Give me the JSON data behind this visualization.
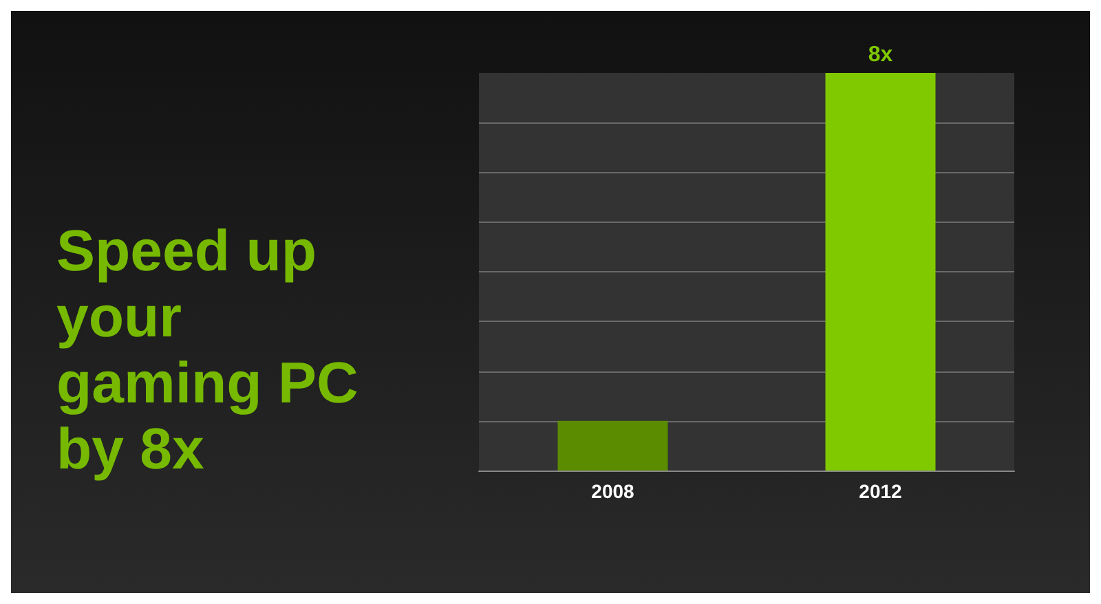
{
  "chart_data": {
    "type": "bar",
    "title": "Speed up your gaming PC by 8x",
    "categories": [
      "2008",
      "2012"
    ],
    "values": [
      1,
      8
    ],
    "colors": [
      "#5b8c00",
      "#80c800"
    ],
    "value_labels": [
      null,
      "8x"
    ],
    "grid": true,
    "ylim": [
      0,
      8
    ],
    "yticks": [
      {
        "value": 0,
        "label": null
      },
      {
        "value": 1,
        "label": null
      },
      {
        "value": 2,
        "label": null
      },
      {
        "value": 3,
        "label": null
      },
      {
        "value": 4,
        "label": null
      },
      {
        "value": 5,
        "label": null
      },
      {
        "value": 6,
        "label": null
      },
      {
        "value": 7,
        "label": null
      }
    ],
    "tick_labels": "x"
  }
}
